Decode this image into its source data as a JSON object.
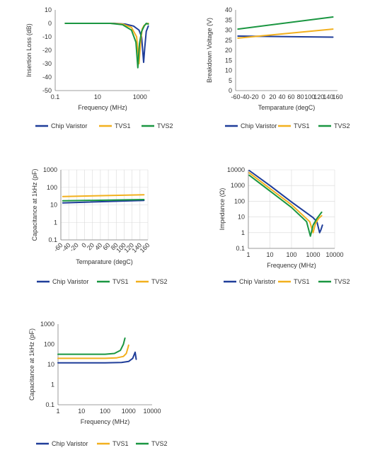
{
  "colors": {
    "blue": "#1f3d99",
    "orange": "#f2b01e",
    "green": "#1a9641"
  },
  "chart_data": [
    {
      "type": "line",
      "xscale": "log",
      "xlabel": "Frequency (MHz)",
      "ylabel": "Insertion Loss (dB)",
      "xlim": [
        0.1,
        3000
      ],
      "ylim": [
        -50,
        10
      ],
      "xticks": [
        0.1,
        10,
        1000
      ],
      "xtick_labels": [
        "0.1",
        "10",
        "1000"
      ],
      "yticks": [
        10,
        0,
        -10,
        -20,
        -30,
        -40,
        -50
      ],
      "ytick_labels": [
        "10",
        "0",
        "-10",
        "-20",
        "-30",
        "-40",
        "-50"
      ],
      "grid": false,
      "legend_position": "bottom",
      "series": [
        {
          "name": "Chip Varistor",
          "color": "#1f3d99",
          "x": [
            0.3,
            10,
            60,
            200,
            500,
            900,
            1200,
            1500,
            1700,
            2000,
            2500
          ],
          "y": [
            0,
            0,
            0,
            -0.5,
            -2,
            -5,
            -10,
            -29,
            -18,
            -6,
            -2
          ]
        },
        {
          "name": "TVS1",
          "color": "#f2b01e",
          "x": [
            0.3,
            10,
            40,
            150,
            400,
            700,
            900,
            1100,
            1300,
            1600,
            2000,
            2500
          ],
          "y": [
            0,
            0,
            0,
            -0.5,
            -3,
            -10,
            -30,
            -12,
            -4,
            -1.5,
            -0.5,
            0
          ]
        },
        {
          "name": "TVS2",
          "color": "#1a9641",
          "x": [
            0.3,
            10,
            40,
            150,
            400,
            650,
            800,
            950,
            1200,
            1600,
            2000,
            2500
          ],
          "y": [
            0,
            0,
            0,
            -1,
            -5,
            -14,
            -33,
            -15,
            -6,
            -2,
            0,
            -0.5
          ]
        }
      ]
    },
    {
      "type": "line",
      "xlabel": "Temparature (degC)",
      "ylabel": "Breakdown Voltage (V)",
      "xlim": [
        -60,
        160
      ],
      "ylim": [
        0,
        40
      ],
      "xticks": [
        -60,
        -40,
        -20,
        0,
        20,
        40,
        60,
        80,
        100,
        120,
        140,
        160
      ],
      "xtick_labels": [
        "-60",
        "-40",
        "-20",
        "0",
        "20",
        "40",
        "60",
        "80",
        "100",
        "120",
        "140",
        "160"
      ],
      "yticks": [
        0,
        5,
        10,
        15,
        20,
        25,
        30,
        35,
        40
      ],
      "ytick_labels": [
        "0",
        "5",
        "10",
        "15",
        "20",
        "25",
        "30",
        "35",
        "40"
      ],
      "grid": false,
      "legend_position": "bottom",
      "series": [
        {
          "name": "Chip Varistor",
          "color": "#1f3d99",
          "x": [
            -55,
            150
          ],
          "y": [
            27,
            26.5
          ]
        },
        {
          "name": "TVS1",
          "color": "#f2b01e",
          "x": [
            -55,
            150
          ],
          "y": [
            26,
            30.5
          ]
        },
        {
          "name": "TVS2",
          "color": "#1a9641",
          "x": [
            -55,
            150
          ],
          "y": [
            30.5,
            36.5
          ]
        }
      ]
    },
    {
      "type": "line",
      "yscale": "log",
      "xlabel": "Temparature (degC)",
      "ylabel": "Capacitance at 1kHz (pF)",
      "xlim": [
        -60,
        160
      ],
      "ylim": [
        0.1,
        1000
      ],
      "xticks": [
        -60,
        -40,
        -20,
        0,
        20,
        40,
        60,
        80,
        100,
        120,
        140,
        160
      ],
      "xtick_labels": [
        "-60",
        "-40",
        "-20",
        "0",
        "20",
        "40",
        "60",
        "80",
        "100",
        "120",
        "140",
        "160"
      ],
      "yticks": [
        1000,
        100,
        10,
        1,
        0.1
      ],
      "ytick_labels": [
        "1000",
        "100",
        "10",
        "1",
        "0.1"
      ],
      "grid": true,
      "legend_position": "bottom",
      "series": [
        {
          "name": "Chip Varistor",
          "color": "#1f3d99",
          "x": [
            -55,
            150
          ],
          "y": [
            13,
            18
          ]
        },
        {
          "name": "TVS1",
          "color": "#1a9641",
          "x": [
            -55,
            150
          ],
          "y": [
            17,
            20
          ]
        },
        {
          "name": "TVS2",
          "color": "#f2b01e",
          "x": [
            -55,
            150
          ],
          "y": [
            30,
            38
          ]
        }
      ]
    },
    {
      "type": "line",
      "xscale": "log",
      "yscale": "log",
      "xlabel": "Frequency (MHz)",
      "ylabel": "Impedance (Ω)",
      "xlim": [
        1,
        10000
      ],
      "ylim": [
        0.1,
        10000
      ],
      "xticks": [
        1,
        10,
        100,
        1000,
        10000
      ],
      "xtick_labels": [
        "1",
        "10",
        "100",
        "1000",
        "10000"
      ],
      "yticks": [
        10000,
        1000,
        100,
        10,
        1,
        0.1
      ],
      "ytick_labels": [
        "10000",
        "1000",
        "100",
        "10",
        "1",
        "0.1"
      ],
      "grid": true,
      "legend_position": "bottom",
      "series": [
        {
          "name": "Chip Varistor",
          "color": "#1f3d99",
          "x": [
            1.1,
            10,
            100,
            1000,
            1500,
            2000,
            2300,
            2700
          ],
          "y": [
            9000,
            1000,
            90,
            9,
            5,
            1,
            1.5,
            3
          ]
        },
        {
          "name": "TVS1",
          "color": "#f2b01e",
          "x": [
            1.1,
            10,
            100,
            700,
            1000,
            1300,
            1800,
            2500
          ],
          "y": [
            6500,
            650,
            60,
            5,
            1,
            4,
            8,
            12
          ]
        },
        {
          "name": "TVS2",
          "color": "#1a9641",
          "x": [
            1.1,
            10,
            100,
            500,
            750,
            1000,
            1500,
            2500
          ],
          "y": [
            4500,
            450,
            40,
            5,
            0.6,
            3,
            8,
            20
          ]
        }
      ]
    },
    {
      "type": "line",
      "xscale": "log",
      "yscale": "log",
      "xlabel": "Frequency (MHz)",
      "ylabel": "Capacitance at 1kHz (pF)",
      "xlim": [
        1,
        10000
      ],
      "ylim": [
        0.1,
        1000
      ],
      "xticks": [
        1,
        10,
        100,
        1000,
        10000
      ],
      "xtick_labels": [
        "1",
        "10",
        "100",
        "1000",
        "10000"
      ],
      "yticks": [
        1000,
        100,
        10,
        1,
        0.1
      ],
      "ytick_labels": [
        "1000",
        "100",
        "10",
        "1",
        "0.1"
      ],
      "grid": false,
      "legend_position": "bottom",
      "series": [
        {
          "name": "Chip Varistor",
          "color": "#1f3d99",
          "x": [
            1,
            100,
            500,
            1000,
            1500,
            1900,
            2100
          ],
          "y": [
            12,
            12,
            12.5,
            14,
            20,
            40,
            18
          ]
        },
        {
          "name": "TVS1",
          "color": "#f2b01e",
          "x": [
            1,
            100,
            300,
            600,
            800,
            950,
            1000
          ],
          "y": [
            20,
            20,
            21,
            25,
            35,
            70,
            90
          ]
        },
        {
          "name": "TVS2",
          "color": "#1a9641",
          "x": [
            1,
            100,
            250,
            450,
            600,
            700
          ],
          "y": [
            32,
            32,
            35,
            50,
            100,
            200
          ]
        }
      ]
    }
  ]
}
